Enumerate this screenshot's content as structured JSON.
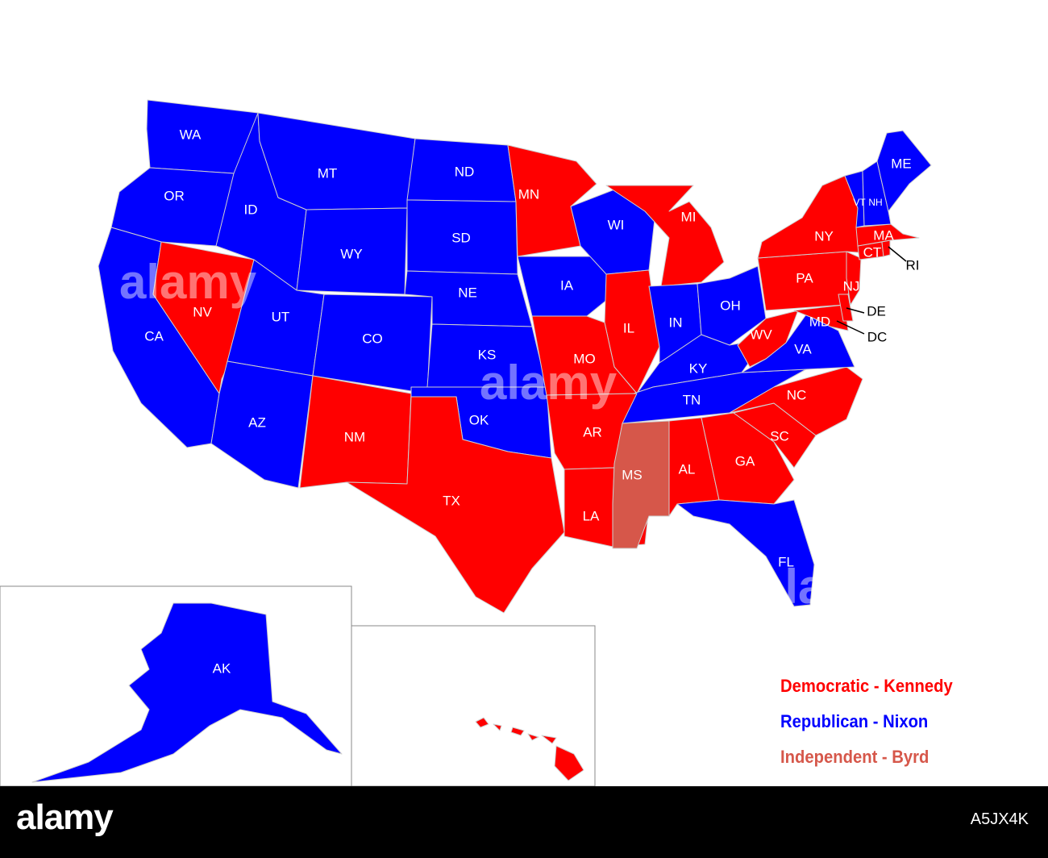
{
  "colors": {
    "democratic": "#ff0000",
    "republican": "#0000ff",
    "independent": "#d6574a",
    "border": "#cfcfcf",
    "footer": "#000000"
  },
  "states": [
    {
      "abbr": "WA",
      "party": "republican"
    },
    {
      "abbr": "OR",
      "party": "republican"
    },
    {
      "abbr": "CA",
      "party": "republican"
    },
    {
      "abbr": "NV",
      "party": "democratic"
    },
    {
      "abbr": "ID",
      "party": "republican"
    },
    {
      "abbr": "MT",
      "party": "republican"
    },
    {
      "abbr": "WY",
      "party": "republican"
    },
    {
      "abbr": "UT",
      "party": "republican"
    },
    {
      "abbr": "AZ",
      "party": "republican"
    },
    {
      "abbr": "CO",
      "party": "republican"
    },
    {
      "abbr": "NM",
      "party": "democratic"
    },
    {
      "abbr": "ND",
      "party": "republican"
    },
    {
      "abbr": "SD",
      "party": "republican"
    },
    {
      "abbr": "NE",
      "party": "republican"
    },
    {
      "abbr": "KS",
      "party": "republican"
    },
    {
      "abbr": "OK",
      "party": "republican"
    },
    {
      "abbr": "TX",
      "party": "democratic"
    },
    {
      "abbr": "MN",
      "party": "democratic"
    },
    {
      "abbr": "IA",
      "party": "republican"
    },
    {
      "abbr": "MO",
      "party": "democratic"
    },
    {
      "abbr": "AR",
      "party": "democratic"
    },
    {
      "abbr": "LA",
      "party": "democratic"
    },
    {
      "abbr": "WI",
      "party": "republican"
    },
    {
      "abbr": "IL",
      "party": "democratic"
    },
    {
      "abbr": "MI",
      "party": "democratic"
    },
    {
      "abbr": "IN",
      "party": "republican"
    },
    {
      "abbr": "OH",
      "party": "republican"
    },
    {
      "abbr": "KY",
      "party": "republican"
    },
    {
      "abbr": "TN",
      "party": "republican"
    },
    {
      "abbr": "MS",
      "party": "independent"
    },
    {
      "abbr": "AL",
      "party": "democratic"
    },
    {
      "abbr": "GA",
      "party": "democratic"
    },
    {
      "abbr": "FL",
      "party": "republican"
    },
    {
      "abbr": "SC",
      "party": "democratic"
    },
    {
      "abbr": "NC",
      "party": "democratic"
    },
    {
      "abbr": "VA",
      "party": "republican"
    },
    {
      "abbr": "WV",
      "party": "democratic"
    },
    {
      "abbr": "MD",
      "party": "democratic"
    },
    {
      "abbr": "DE",
      "party": "democratic"
    },
    {
      "abbr": "DC",
      "party": "democratic"
    },
    {
      "abbr": "PA",
      "party": "democratic"
    },
    {
      "abbr": "NJ",
      "party": "democratic"
    },
    {
      "abbr": "NY",
      "party": "democratic"
    },
    {
      "abbr": "CT",
      "party": "democratic"
    },
    {
      "abbr": "RI",
      "party": "democratic"
    },
    {
      "abbr": "MA",
      "party": "democratic"
    },
    {
      "abbr": "VT",
      "party": "republican"
    },
    {
      "abbr": "NH",
      "party": "republican"
    },
    {
      "abbr": "ME",
      "party": "republican"
    },
    {
      "abbr": "AK",
      "party": "republican"
    },
    {
      "abbr": "HI",
      "party": "democratic"
    }
  ],
  "legend": {
    "democratic": "Democratic - Kennedy",
    "republican": "Republican - Nixon",
    "independent": "Independent - Byrd"
  },
  "watermark": "alamy",
  "footer": {
    "logo": "alamy",
    "image_id": "A5JX4K"
  }
}
